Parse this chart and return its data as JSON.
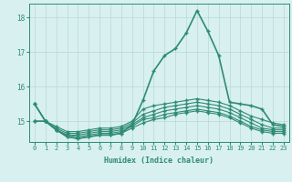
{
  "xlabel": "Humidex (Indice chaleur)",
  "x_values": [
    0,
    1,
    2,
    3,
    4,
    5,
    6,
    7,
    8,
    9,
    10,
    11,
    12,
    13,
    14,
    15,
    16,
    17,
    18,
    19,
    20,
    21,
    22,
    23
  ],
  "series": [
    [
      15.5,
      15.0,
      14.85,
      14.7,
      14.7,
      14.75,
      14.8,
      14.8,
      14.85,
      15.0,
      15.35,
      15.45,
      15.5,
      15.55,
      15.6,
      15.65,
      15.6,
      15.55,
      15.45,
      15.3,
      15.15,
      15.05,
      14.95,
      14.9
    ],
    [
      15.0,
      15.0,
      14.8,
      14.65,
      14.65,
      14.7,
      14.75,
      14.75,
      14.8,
      14.95,
      15.2,
      15.3,
      15.4,
      15.45,
      15.5,
      15.55,
      15.5,
      15.45,
      15.35,
      15.2,
      15.05,
      14.9,
      14.8,
      14.8
    ],
    [
      15.0,
      15.0,
      14.75,
      14.6,
      14.6,
      14.65,
      14.7,
      14.7,
      14.75,
      14.9,
      15.1,
      15.2,
      15.3,
      15.35,
      15.4,
      15.45,
      15.4,
      15.35,
      15.25,
      15.1,
      14.95,
      14.8,
      14.75,
      14.75
    ],
    [
      15.0,
      15.0,
      14.75,
      14.6,
      14.55,
      14.6,
      14.65,
      14.65,
      14.7,
      14.85,
      15.05,
      15.1,
      15.2,
      15.25,
      15.3,
      15.35,
      15.3,
      15.25,
      15.15,
      15.0,
      14.85,
      14.75,
      14.7,
      14.7
    ],
    [
      15.5,
      15.0,
      14.75,
      14.55,
      14.5,
      14.55,
      14.6,
      14.6,
      14.65,
      14.8,
      14.95,
      15.05,
      15.1,
      15.2,
      15.25,
      15.3,
      15.25,
      15.2,
      15.1,
      14.95,
      14.8,
      14.7,
      14.65,
      14.65
    ],
    [
      15.5,
      15.0,
      14.75,
      14.55,
      14.5,
      14.55,
      14.6,
      14.6,
      14.65,
      14.9,
      15.6,
      16.45,
      16.9,
      17.1,
      17.55,
      18.2,
      17.6,
      16.9,
      15.55,
      15.5,
      15.45,
      15.35,
      14.9,
      14.85
    ]
  ],
  "line_color": "#2e8b74",
  "bg_color": "#d8f0f0",
  "grid_color": "#b8d8d8",
  "ylim": [
    14.4,
    18.4
  ],
  "yticks": [
    15,
    16,
    17,
    18
  ],
  "xticks": [
    0,
    1,
    2,
    3,
    4,
    5,
    6,
    7,
    8,
    9,
    10,
    11,
    12,
    13,
    14,
    15,
    16,
    17,
    18,
    19,
    20,
    21,
    22,
    23
  ]
}
